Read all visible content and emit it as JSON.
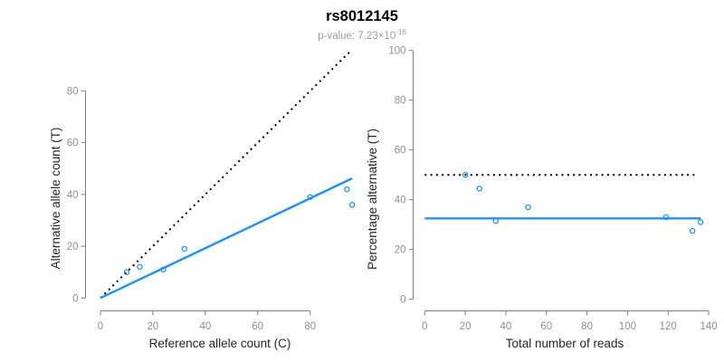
{
  "header": {
    "title": "rs8012145",
    "pvalue_prefix": "p-value: 7.23×10",
    "pvalue_exponent": "-16"
  },
  "palette": {
    "accent_blue": "#1E90FF",
    "dotted_black": "#000000",
    "axis_gray": "#808080",
    "tick_label_gray": "#8f8f8f",
    "axis_title_color": "#262626"
  },
  "chart_data": [
    {
      "type": "scatter",
      "panel": "allele-counts",
      "xlabel": "Reference allele count (C)",
      "ylabel": "Alternative allele count (T)",
      "xticks": [
        0,
        20,
        40,
        60,
        80
      ],
      "yticks": [
        0,
        20,
        40,
        60,
        80
      ],
      "xlim": [
        0,
        96
      ],
      "ylim": [
        0,
        96
      ],
      "points": [
        [
          10,
          10
        ],
        [
          15,
          12
        ],
        [
          24,
          11
        ],
        [
          32,
          19
        ],
        [
          80,
          39
        ],
        [
          94,
          42
        ],
        [
          96,
          36
        ]
      ],
      "lines": [
        {
          "name": "identity-line",
          "style": "dotted",
          "color_key": "dotted_black",
          "x1": 0,
          "y1": 0,
          "x2": 95.5,
          "y2": 95.5
        },
        {
          "name": "fit-line",
          "style": "solid",
          "color_key": "accent_blue",
          "x1": 0,
          "y1": 0,
          "x2": 96,
          "y2": 46.2
        }
      ],
      "grid": false,
      "legend": "none",
      "marker": "open-circle"
    },
    {
      "type": "scatter",
      "panel": "percentage-vs-coverage",
      "xlabel": "Total number of reads",
      "ylabel": "Percentage alternative (T)",
      "xticks": [
        0,
        20,
        40,
        60,
        80,
        100,
        120,
        140
      ],
      "yticks": [
        0,
        20,
        40,
        60,
        80,
        100
      ],
      "xlim": [
        0,
        140
      ],
      "ylim": [
        0,
        100
      ],
      "points": [
        [
          20,
          50
        ],
        [
          27,
          44.5
        ],
        [
          35,
          31.5
        ],
        [
          51,
          37
        ],
        [
          119,
          33
        ],
        [
          132,
          27.5
        ],
        [
          136,
          31
        ]
      ],
      "lines": [
        {
          "name": "expected-50pct-line",
          "style": "dotted",
          "color_key": "dotted_black",
          "x1": 0,
          "y1": 50,
          "x2": 133,
          "y2": 50
        },
        {
          "name": "fit-line",
          "style": "solid",
          "color_key": "accent_blue",
          "x1": 0,
          "y1": 32.5,
          "x2": 136,
          "y2": 32.5
        }
      ],
      "grid": false,
      "legend": "none",
      "marker": "open-circle"
    }
  ]
}
